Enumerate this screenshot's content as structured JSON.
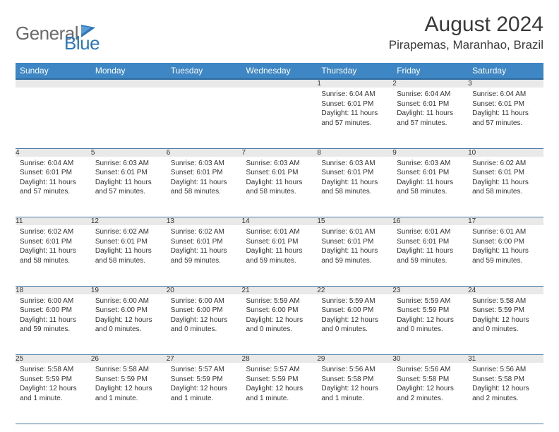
{
  "logo": {
    "part1": "General",
    "part2": "Blue"
  },
  "header": {
    "month_title": "August 2024",
    "location": "Pirapemas, Maranhao, Brazil"
  },
  "colors": {
    "header_bg": "#3e86c4",
    "header_border": "#2f6a9e",
    "row_sep": "#4a7aa8",
    "daynum_bg": "#e9e9e9",
    "logo_gray": "#6a6a6a",
    "logo_blue": "#2b77b8"
  },
  "day_names": [
    "Sunday",
    "Monday",
    "Tuesday",
    "Wednesday",
    "Thursday",
    "Friday",
    "Saturday"
  ],
  "weeks": [
    [
      null,
      null,
      null,
      null,
      {
        "n": "1",
        "sunrise": "6:04 AM",
        "sunset": "6:01 PM",
        "daylight": "11 hours and 57 minutes."
      },
      {
        "n": "2",
        "sunrise": "6:04 AM",
        "sunset": "6:01 PM",
        "daylight": "11 hours and 57 minutes."
      },
      {
        "n": "3",
        "sunrise": "6:04 AM",
        "sunset": "6:01 PM",
        "daylight": "11 hours and 57 minutes."
      }
    ],
    [
      {
        "n": "4",
        "sunrise": "6:04 AM",
        "sunset": "6:01 PM",
        "daylight": "11 hours and 57 minutes."
      },
      {
        "n": "5",
        "sunrise": "6:03 AM",
        "sunset": "6:01 PM",
        "daylight": "11 hours and 57 minutes."
      },
      {
        "n": "6",
        "sunrise": "6:03 AM",
        "sunset": "6:01 PM",
        "daylight": "11 hours and 58 minutes."
      },
      {
        "n": "7",
        "sunrise": "6:03 AM",
        "sunset": "6:01 PM",
        "daylight": "11 hours and 58 minutes."
      },
      {
        "n": "8",
        "sunrise": "6:03 AM",
        "sunset": "6:01 PM",
        "daylight": "11 hours and 58 minutes."
      },
      {
        "n": "9",
        "sunrise": "6:03 AM",
        "sunset": "6:01 PM",
        "daylight": "11 hours and 58 minutes."
      },
      {
        "n": "10",
        "sunrise": "6:02 AM",
        "sunset": "6:01 PM",
        "daylight": "11 hours and 58 minutes."
      }
    ],
    [
      {
        "n": "11",
        "sunrise": "6:02 AM",
        "sunset": "6:01 PM",
        "daylight": "11 hours and 58 minutes."
      },
      {
        "n": "12",
        "sunrise": "6:02 AM",
        "sunset": "6:01 PM",
        "daylight": "11 hours and 58 minutes."
      },
      {
        "n": "13",
        "sunrise": "6:02 AM",
        "sunset": "6:01 PM",
        "daylight": "11 hours and 59 minutes."
      },
      {
        "n": "14",
        "sunrise": "6:01 AM",
        "sunset": "6:01 PM",
        "daylight": "11 hours and 59 minutes."
      },
      {
        "n": "15",
        "sunrise": "6:01 AM",
        "sunset": "6:01 PM",
        "daylight": "11 hours and 59 minutes."
      },
      {
        "n": "16",
        "sunrise": "6:01 AM",
        "sunset": "6:01 PM",
        "daylight": "11 hours and 59 minutes."
      },
      {
        "n": "17",
        "sunrise": "6:01 AM",
        "sunset": "6:00 PM",
        "daylight": "11 hours and 59 minutes."
      }
    ],
    [
      {
        "n": "18",
        "sunrise": "6:00 AM",
        "sunset": "6:00 PM",
        "daylight": "11 hours and 59 minutes."
      },
      {
        "n": "19",
        "sunrise": "6:00 AM",
        "sunset": "6:00 PM",
        "daylight": "12 hours and 0 minutes."
      },
      {
        "n": "20",
        "sunrise": "6:00 AM",
        "sunset": "6:00 PM",
        "daylight": "12 hours and 0 minutes."
      },
      {
        "n": "21",
        "sunrise": "5:59 AM",
        "sunset": "6:00 PM",
        "daylight": "12 hours and 0 minutes."
      },
      {
        "n": "22",
        "sunrise": "5:59 AM",
        "sunset": "6:00 PM",
        "daylight": "12 hours and 0 minutes."
      },
      {
        "n": "23",
        "sunrise": "5:59 AM",
        "sunset": "5:59 PM",
        "daylight": "12 hours and 0 minutes."
      },
      {
        "n": "24",
        "sunrise": "5:58 AM",
        "sunset": "5:59 PM",
        "daylight": "12 hours and 0 minutes."
      }
    ],
    [
      {
        "n": "25",
        "sunrise": "5:58 AM",
        "sunset": "5:59 PM",
        "daylight": "12 hours and 1 minute."
      },
      {
        "n": "26",
        "sunrise": "5:58 AM",
        "sunset": "5:59 PM",
        "daylight": "12 hours and 1 minute."
      },
      {
        "n": "27",
        "sunrise": "5:57 AM",
        "sunset": "5:59 PM",
        "daylight": "12 hours and 1 minute."
      },
      {
        "n": "28",
        "sunrise": "5:57 AM",
        "sunset": "5:59 PM",
        "daylight": "12 hours and 1 minute."
      },
      {
        "n": "29",
        "sunrise": "5:56 AM",
        "sunset": "5:58 PM",
        "daylight": "12 hours and 1 minute."
      },
      {
        "n": "30",
        "sunrise": "5:56 AM",
        "sunset": "5:58 PM",
        "daylight": "12 hours and 2 minutes."
      },
      {
        "n": "31",
        "sunrise": "5:56 AM",
        "sunset": "5:58 PM",
        "daylight": "12 hours and 2 minutes."
      }
    ]
  ],
  "labels": {
    "sunrise": "Sunrise: ",
    "sunset": "Sunset: ",
    "daylight": "Daylight: "
  }
}
